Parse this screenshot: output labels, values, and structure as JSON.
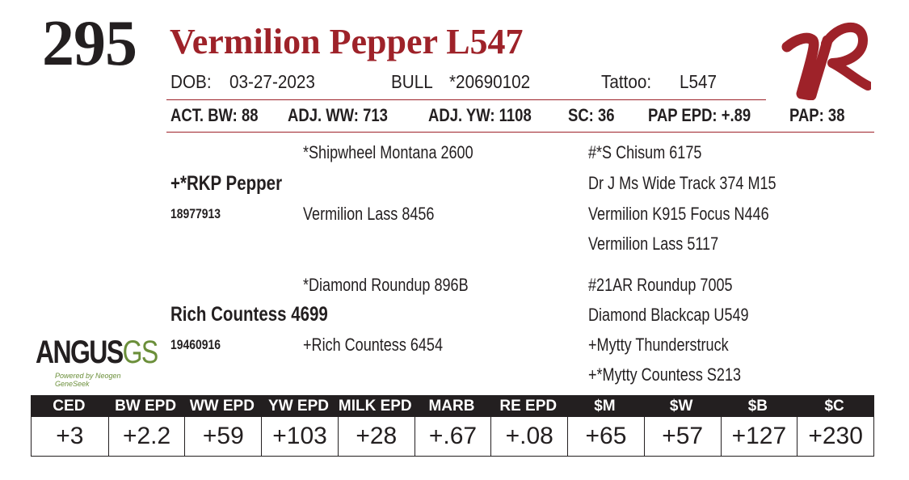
{
  "lot_number": "295",
  "animal_name": "Vermilion Pepper L547",
  "info": {
    "dob_label": "DOB:",
    "dob_value": "03-27-2023",
    "sex": "BULL",
    "registration": "*20690102",
    "tattoo_label": "Tattoo:",
    "tattoo_value": "L547"
  },
  "stats": {
    "act_bw": "ACT. BW: 88",
    "adj_ww": "ADJ. WW: 713",
    "adj_yw": "ADJ. YW: 1108",
    "sc": "SC: 36",
    "pap_epd": "PAP EPD: +.89",
    "pap": "PAP: 38"
  },
  "pedigree": {
    "sire": {
      "name": "+*RKP Pepper",
      "reg": "18977913"
    },
    "sire_sire": "*Shipwheel Montana 2600",
    "sire_dam": "Vermilion Lass 8456",
    "sire_sire_sire": "#*S Chisum 6175",
    "sire_sire_dam": "Dr J Ms Wide Track 374 M15",
    "sire_dam_sire": "Vermilion K915 Focus N446",
    "sire_dam_dam": "Vermilion Lass 5117",
    "dam": {
      "name": "Rich Countess 4699",
      "reg": "19460916"
    },
    "dam_sire": "*Diamond Roundup 896B",
    "dam_dam": "+Rich Countess 6454",
    "dam_sire_sire": "#21AR Roundup 7005",
    "dam_sire_dam": "Diamond Blackcap U549",
    "dam_dam_sire": "+Mytty Thunderstruck",
    "dam_dam_dam": "+*Mytty Countess S213"
  },
  "logos": {
    "brand_mark": "VR",
    "angus_word": "ANGUS",
    "angus_gs": "GS",
    "angus_tagline": "Powered by Neogen GeneSeek"
  },
  "epd": {
    "headers": [
      "CED",
      "BW EPD",
      "WW EPD",
      "YW EPD",
      "MILK EPD",
      "MARB EPD",
      "RE EPD",
      "$M",
      "$W",
      "$B",
      "$C"
    ],
    "values": [
      "+3",
      "+2.2",
      "+59",
      "+103",
      "+28",
      "+.67",
      "+.08",
      "+65",
      "+57",
      "+127",
      "+230"
    ]
  },
  "colors": {
    "brand_red": "#9e2229",
    "text_dark": "#231f20",
    "angus_green": "#6b8f3a"
  }
}
